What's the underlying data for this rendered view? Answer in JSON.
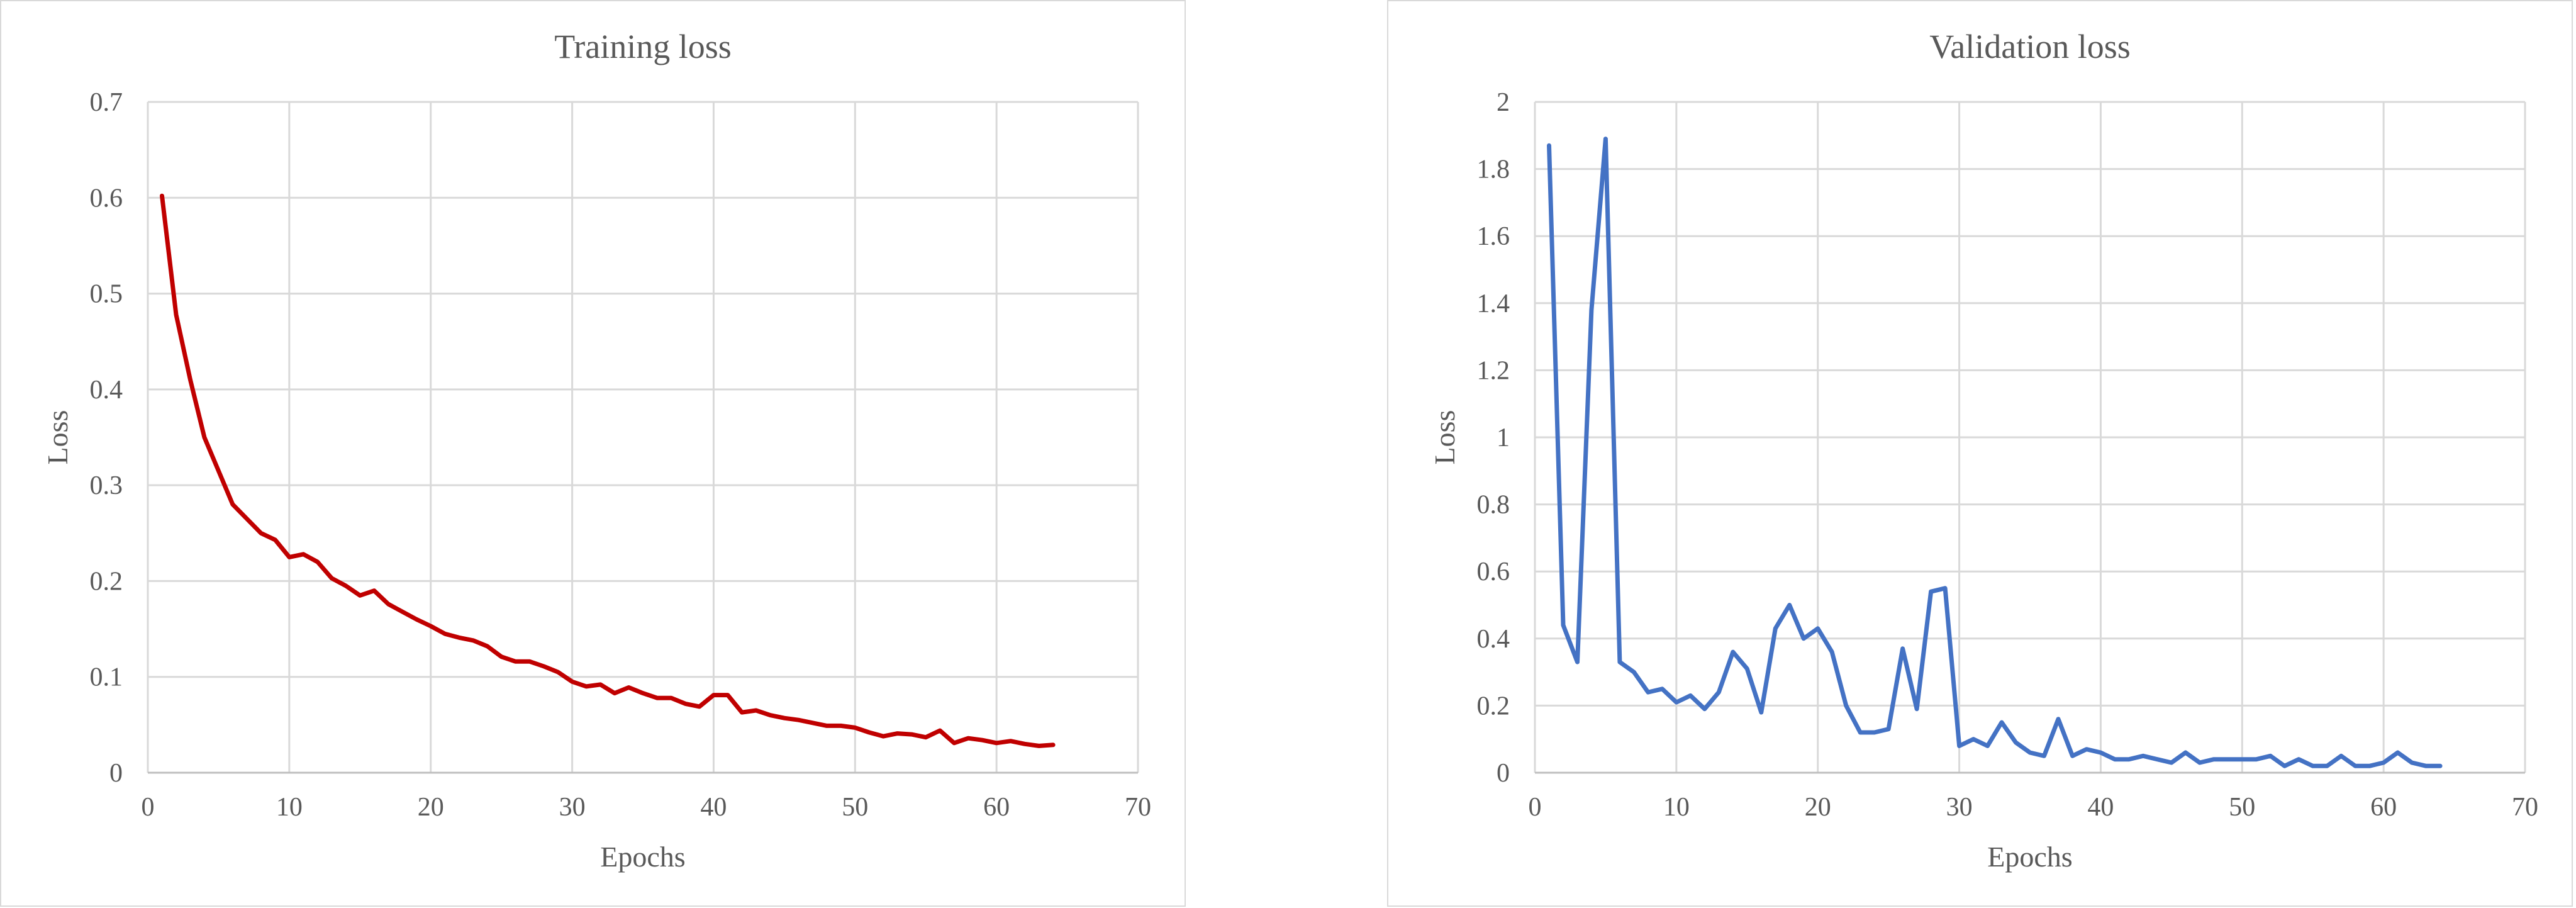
{
  "chart_data": [
    {
      "type": "line",
      "title": "Training loss",
      "xlabel": "Epochs",
      "ylabel": "Loss",
      "xlim": [
        0,
        70
      ],
      "ylim": [
        0,
        0.7
      ],
      "xticks": [
        0,
        10,
        20,
        30,
        40,
        50,
        60,
        70
      ],
      "yticks": [
        0,
        0.1,
        0.2,
        0.3,
        0.4,
        0.5,
        0.6,
        0.7
      ],
      "grid": true,
      "color": "#c00000",
      "series": [
        {
          "x": [
            1,
            2,
            3,
            4,
            5,
            6,
            7,
            8,
            9,
            10,
            11,
            12,
            13,
            14,
            15,
            16,
            17,
            18,
            19,
            20,
            21,
            22,
            23,
            24,
            25,
            26,
            27,
            28,
            29,
            30,
            31,
            32,
            33,
            34,
            35,
            36,
            37,
            38,
            39,
            40,
            41,
            42,
            43,
            44,
            45,
            46,
            47,
            48,
            49,
            50,
            51,
            52,
            53,
            54,
            55,
            56,
            57,
            58,
            59,
            60,
            61,
            62,
            63,
            64
          ],
          "values": [
            0.602,
            0.478,
            0.41,
            0.35,
            0.315,
            0.28,
            0.265,
            0.25,
            0.243,
            0.225,
            0.228,
            0.22,
            0.203,
            0.195,
            0.185,
            0.19,
            0.176,
            0.168,
            0.16,
            0.153,
            0.145,
            0.141,
            0.138,
            0.132,
            0.121,
            0.116,
            0.116,
            0.111,
            0.105,
            0.095,
            0.09,
            0.092,
            0.083,
            0.089,
            0.083,
            0.078,
            0.078,
            0.072,
            0.069,
            0.081,
            0.081,
            0.063,
            0.065,
            0.06,
            0.057,
            0.055,
            0.052,
            0.049,
            0.049,
            0.047,
            0.042,
            0.038,
            0.041,
            0.04,
            0.037,
            0.044,
            0.031,
            0.036,
            0.034,
            0.031,
            0.033,
            0.03,
            0.028,
            0.029
          ]
        }
      ]
    },
    {
      "type": "line",
      "title": "Validation loss",
      "xlabel": "Epochs",
      "ylabel": "Loss",
      "xlim": [
        0,
        70
      ],
      "ylim": [
        0,
        2
      ],
      "xticks": [
        0,
        10,
        20,
        30,
        40,
        50,
        60,
        70
      ],
      "yticks": [
        0,
        0.2,
        0.4,
        0.6,
        0.8,
        1,
        1.2,
        1.4,
        1.6,
        1.8,
        2
      ],
      "grid": true,
      "color": "#4472c4",
      "series": [
        {
          "x": [
            1,
            2,
            3,
            4,
            5,
            6,
            7,
            8,
            9,
            10,
            11,
            12,
            13,
            14,
            15,
            16,
            17,
            18,
            19,
            20,
            21,
            22,
            23,
            24,
            25,
            26,
            27,
            28,
            29,
            30,
            31,
            32,
            33,
            34,
            35,
            36,
            37,
            38,
            39,
            40,
            41,
            42,
            43,
            44,
            45,
            46,
            47,
            48,
            49,
            50,
            51,
            52,
            53,
            54,
            55,
            56,
            57,
            58,
            59,
            60,
            61,
            62,
            63,
            64
          ],
          "values": [
            1.87,
            0.44,
            0.33,
            1.38,
            1.89,
            0.33,
            0.3,
            0.24,
            0.25,
            0.21,
            0.23,
            0.19,
            0.24,
            0.36,
            0.31,
            0.18,
            0.43,
            0.5,
            0.4,
            0.43,
            0.36,
            0.2,
            0.12,
            0.12,
            0.13,
            0.37,
            0.19,
            0.54,
            0.55,
            0.08,
            0.1,
            0.08,
            0.15,
            0.09,
            0.06,
            0.05,
            0.16,
            0.05,
            0.07,
            0.06,
            0.04,
            0.04,
            0.05,
            0.04,
            0.03,
            0.06,
            0.03,
            0.04,
            0.04,
            0.04,
            0.04,
            0.05,
            0.02,
            0.04,
            0.02,
            0.02,
            0.05,
            0.02,
            0.02,
            0.03,
            0.06,
            0.03,
            0.02,
            0.02
          ]
        }
      ]
    }
  ]
}
